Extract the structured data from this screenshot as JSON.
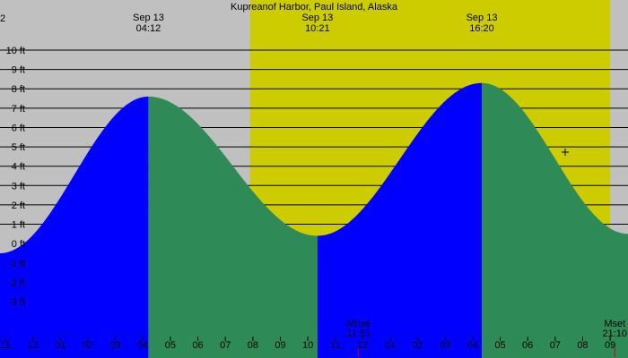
{
  "chart_data": {
    "type": "area",
    "title": "Kupreanof Harbor, Paul Island, Alaska",
    "y_unit": "ft",
    "ylim": [
      -3,
      10
    ],
    "y_ticks": [
      {
        "value": 10,
        "label": "10 ft"
      },
      {
        "value": 9,
        "label": "9 ft"
      },
      {
        "value": 8,
        "label": "8 ft"
      },
      {
        "value": 7,
        "label": "7 ft"
      },
      {
        "value": 6,
        "label": "6 ft"
      },
      {
        "value": 5,
        "label": "5 ft"
      },
      {
        "value": 4,
        "label": "4 ft"
      },
      {
        "value": 3,
        "label": "3 ft"
      },
      {
        "value": 2,
        "label": "2 ft"
      },
      {
        "value": 1,
        "label": "1 ft"
      },
      {
        "value": 0,
        "label": "0 ft"
      },
      {
        "value": -1,
        "label": "-1 ft"
      },
      {
        "value": -2,
        "label": "-2 ft"
      },
      {
        "value": -3,
        "label": "-3 ft"
      }
    ],
    "x_range_hours": [
      -1.2,
      21.65
    ],
    "hour_ticks": [
      {
        "hour": -1,
        "label": "11"
      },
      {
        "hour": 0,
        "label": "12"
      },
      {
        "hour": 1,
        "label": "01"
      },
      {
        "hour": 2,
        "label": "02"
      },
      {
        "hour": 3,
        "label": "03"
      },
      {
        "hour": 4,
        "label": "04"
      },
      {
        "hour": 5,
        "label": "05"
      },
      {
        "hour": 6,
        "label": "06"
      },
      {
        "hour": 7,
        "label": "07"
      },
      {
        "hour": 8,
        "label": "08"
      },
      {
        "hour": 9,
        "label": "09"
      },
      {
        "hour": 10,
        "label": "10"
      },
      {
        "hour": 11,
        "label": "11"
      },
      {
        "hour": 12,
        "label": "12"
      },
      {
        "hour": 13,
        "label": "01"
      },
      {
        "hour": 14,
        "label": "02"
      },
      {
        "hour": 15,
        "label": "03"
      },
      {
        "hour": 16,
        "label": "04"
      },
      {
        "hour": 17,
        "label": "05"
      },
      {
        "hour": 18,
        "label": "06"
      },
      {
        "hour": 19,
        "label": "07"
      },
      {
        "hour": 20,
        "label": "08"
      },
      {
        "hour": 21,
        "label": "09"
      }
    ],
    "extremes": [
      {
        "date": "Sep 13",
        "time": "04:12",
        "hour": 4.2,
        "height": 7.6,
        "type": "high"
      },
      {
        "date": "Sep 13",
        "time": "10:21",
        "hour": 10.35,
        "height": 0.4,
        "type": "low"
      },
      {
        "date": "Sep 13",
        "time": "16:20",
        "hour": 16.33,
        "height": 8.3,
        "type": "high"
      }
    ],
    "edge_heights": {
      "start": -0.5,
      "end": 0.5
    },
    "daylight": {
      "start_hour": 7.9,
      "end_hour": 21.0
    },
    "moon_events": [
      {
        "label": "Mrise",
        "time": "11:51",
        "hour": 11.85
      },
      {
        "label": "Mset",
        "time": "21:10",
        "hour": 21.17
      }
    ],
    "partial_labels": {
      "corner": "2"
    },
    "colors": {
      "night": "#c0c0c0",
      "day": "#cccc00",
      "rising": "#0000ff",
      "falling": "#2e8b57",
      "grid": "#000000",
      "moon_tick": "#cc0000"
    }
  }
}
